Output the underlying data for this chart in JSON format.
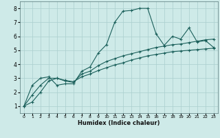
{
  "xlabel": "Humidex (Indice chaleur)",
  "bg_color": "#ceeae8",
  "grid_color": "#aacece",
  "line_color": "#1a5f5a",
  "xlim": [
    -0.5,
    23.5
  ],
  "ylim": [
    0.5,
    8.5
  ],
  "xticks": [
    0,
    1,
    2,
    3,
    4,
    5,
    6,
    7,
    8,
    9,
    10,
    11,
    12,
    13,
    14,
    15,
    16,
    17,
    18,
    19,
    20,
    21,
    22,
    23
  ],
  "yticks": [
    1,
    2,
    3,
    4,
    5,
    6,
    7,
    8
  ],
  "line1_x": [
    0,
    1,
    2,
    3,
    4,
    5,
    6,
    7,
    8,
    9,
    10,
    11,
    12,
    13,
    14,
    15,
    16,
    17,
    18,
    19,
    20,
    21,
    22,
    23
  ],
  "line1_y": [
    1.0,
    2.5,
    3.0,
    3.1,
    2.5,
    2.6,
    2.6,
    3.5,
    3.8,
    4.8,
    5.4,
    7.0,
    7.8,
    7.85,
    8.0,
    8.0,
    6.2,
    5.35,
    6.0,
    5.8,
    6.6,
    5.6,
    5.7,
    5.2
  ],
  "line2_x": [
    0,
    1,
    2,
    3,
    4,
    5,
    6,
    7,
    8,
    9,
    10,
    11,
    12,
    13,
    14,
    15,
    16,
    17,
    18,
    19,
    20,
    21,
    22,
    23
  ],
  "line2_y": [
    1.0,
    1.8,
    2.5,
    3.0,
    3.0,
    2.8,
    2.7,
    3.3,
    3.5,
    3.9,
    4.2,
    4.4,
    4.6,
    4.75,
    4.9,
    5.05,
    5.2,
    5.3,
    5.4,
    5.45,
    5.55,
    5.65,
    5.75,
    5.8
  ],
  "line3_x": [
    0,
    1,
    2,
    3,
    4,
    5,
    6,
    7,
    8,
    9,
    10,
    11,
    12,
    13,
    14,
    15,
    16,
    17,
    18,
    19,
    20,
    21,
    22,
    23
  ],
  "line3_y": [
    1.0,
    1.3,
    2.0,
    2.8,
    3.0,
    2.85,
    2.75,
    3.1,
    3.3,
    3.55,
    3.75,
    3.95,
    4.1,
    4.3,
    4.45,
    4.6,
    4.7,
    4.8,
    4.9,
    4.95,
    5.0,
    5.05,
    5.1,
    5.15
  ],
  "marker": "+",
  "markersize": 3,
  "linewidth": 0.8
}
